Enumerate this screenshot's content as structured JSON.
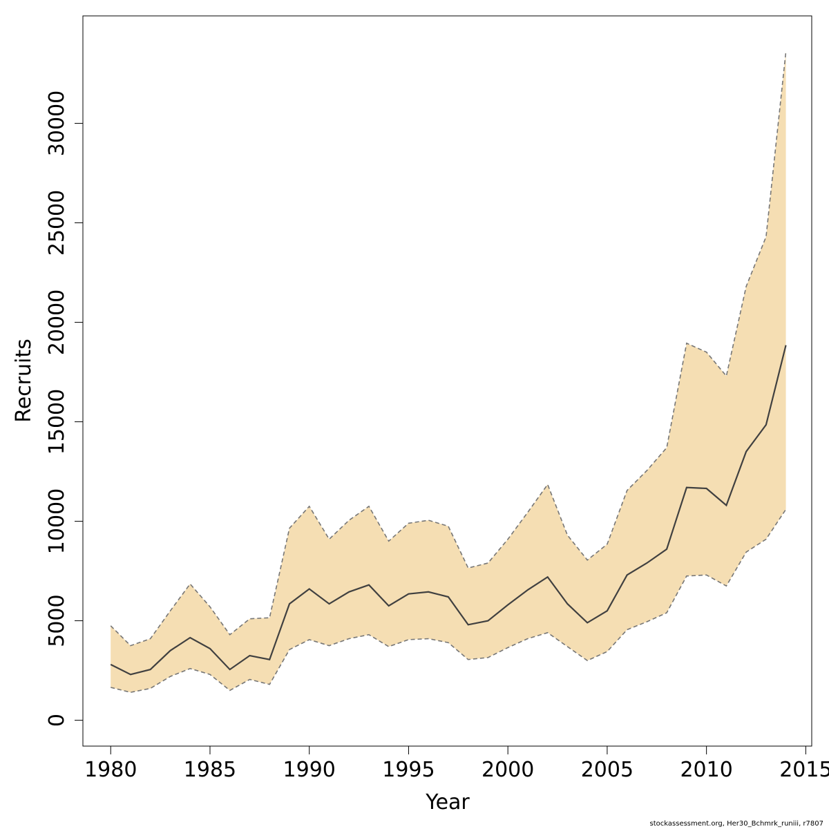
{
  "chart_data": {
    "type": "area",
    "title": "",
    "xlabel": "Year",
    "ylabel": "Recruits",
    "xlim": [
      1978.6,
      2015.3
    ],
    "ylim": [
      -1300,
      35400
    ],
    "x_ticks": [
      1980,
      1985,
      1990,
      1995,
      2000,
      2005,
      2010,
      2015
    ],
    "y_ticks": [
      0,
      5000,
      10000,
      15000,
      20000,
      25000,
      30000
    ],
    "x_tick_labels": [
      "1980",
      "1985",
      "1990",
      "1995",
      "2000",
      "2005",
      "2010",
      "2015"
    ],
    "y_tick_labels": [
      "0",
      "5000",
      "10000",
      "15000",
      "20000",
      "25000",
      "30000"
    ],
    "grid": false,
    "colors": {
      "band": "#f5deb3",
      "median": "#404040",
      "bounds": "#767676"
    },
    "x": [
      1980,
      1981,
      1982,
      1983,
      1984,
      1985,
      1986,
      1987,
      1988,
      1989,
      1990,
      1991,
      1992,
      1993,
      1994,
      1995,
      1996,
      1997,
      1998,
      1999,
      2000,
      2001,
      2002,
      2003,
      2004,
      2005,
      2006,
      2007,
      2008,
      2009,
      2010,
      2011,
      2012,
      2013,
      2014
    ],
    "series": [
      {
        "role": "median",
        "values": [
          2800,
          2300,
          2550,
          3500,
          4150,
          3600,
          2550,
          3250,
          3050,
          5850,
          6600,
          5850,
          6450,
          6800,
          5750,
          6350,
          6450,
          6200,
          4800,
          5000,
          5800,
          6550,
          7200,
          5850,
          4900,
          5500,
          7300,
          7900,
          8600,
          11700,
          11650,
          10800,
          13500,
          14850,
          18850
        ]
      },
      {
        "role": "upper",
        "values": [
          4750,
          3750,
          4100,
          5500,
          6850,
          5700,
          4300,
          5100,
          5150,
          9650,
          10750,
          9100,
          10050,
          10750,
          9000,
          9900,
          10050,
          9750,
          7650,
          7900,
          9100,
          10450,
          11850,
          9300,
          8050,
          8850,
          11550,
          12550,
          13700,
          18950,
          18500,
          17300,
          21800,
          24300,
          33600
        ]
      },
      {
        "role": "lower",
        "values": [
          1650,
          1400,
          1600,
          2200,
          2600,
          2300,
          1500,
          2050,
          1800,
          3550,
          4050,
          3750,
          4100,
          4300,
          3700,
          4050,
          4100,
          3900,
          3050,
          3150,
          3650,
          4100,
          4400,
          3700,
          3000,
          3450,
          4550,
          4950,
          5400,
          7250,
          7300,
          6750,
          8450,
          9100,
          10600
        ]
      }
    ]
  },
  "footer": "stockassessment.org, Her30_Bchmrk_runiii, r7807"
}
